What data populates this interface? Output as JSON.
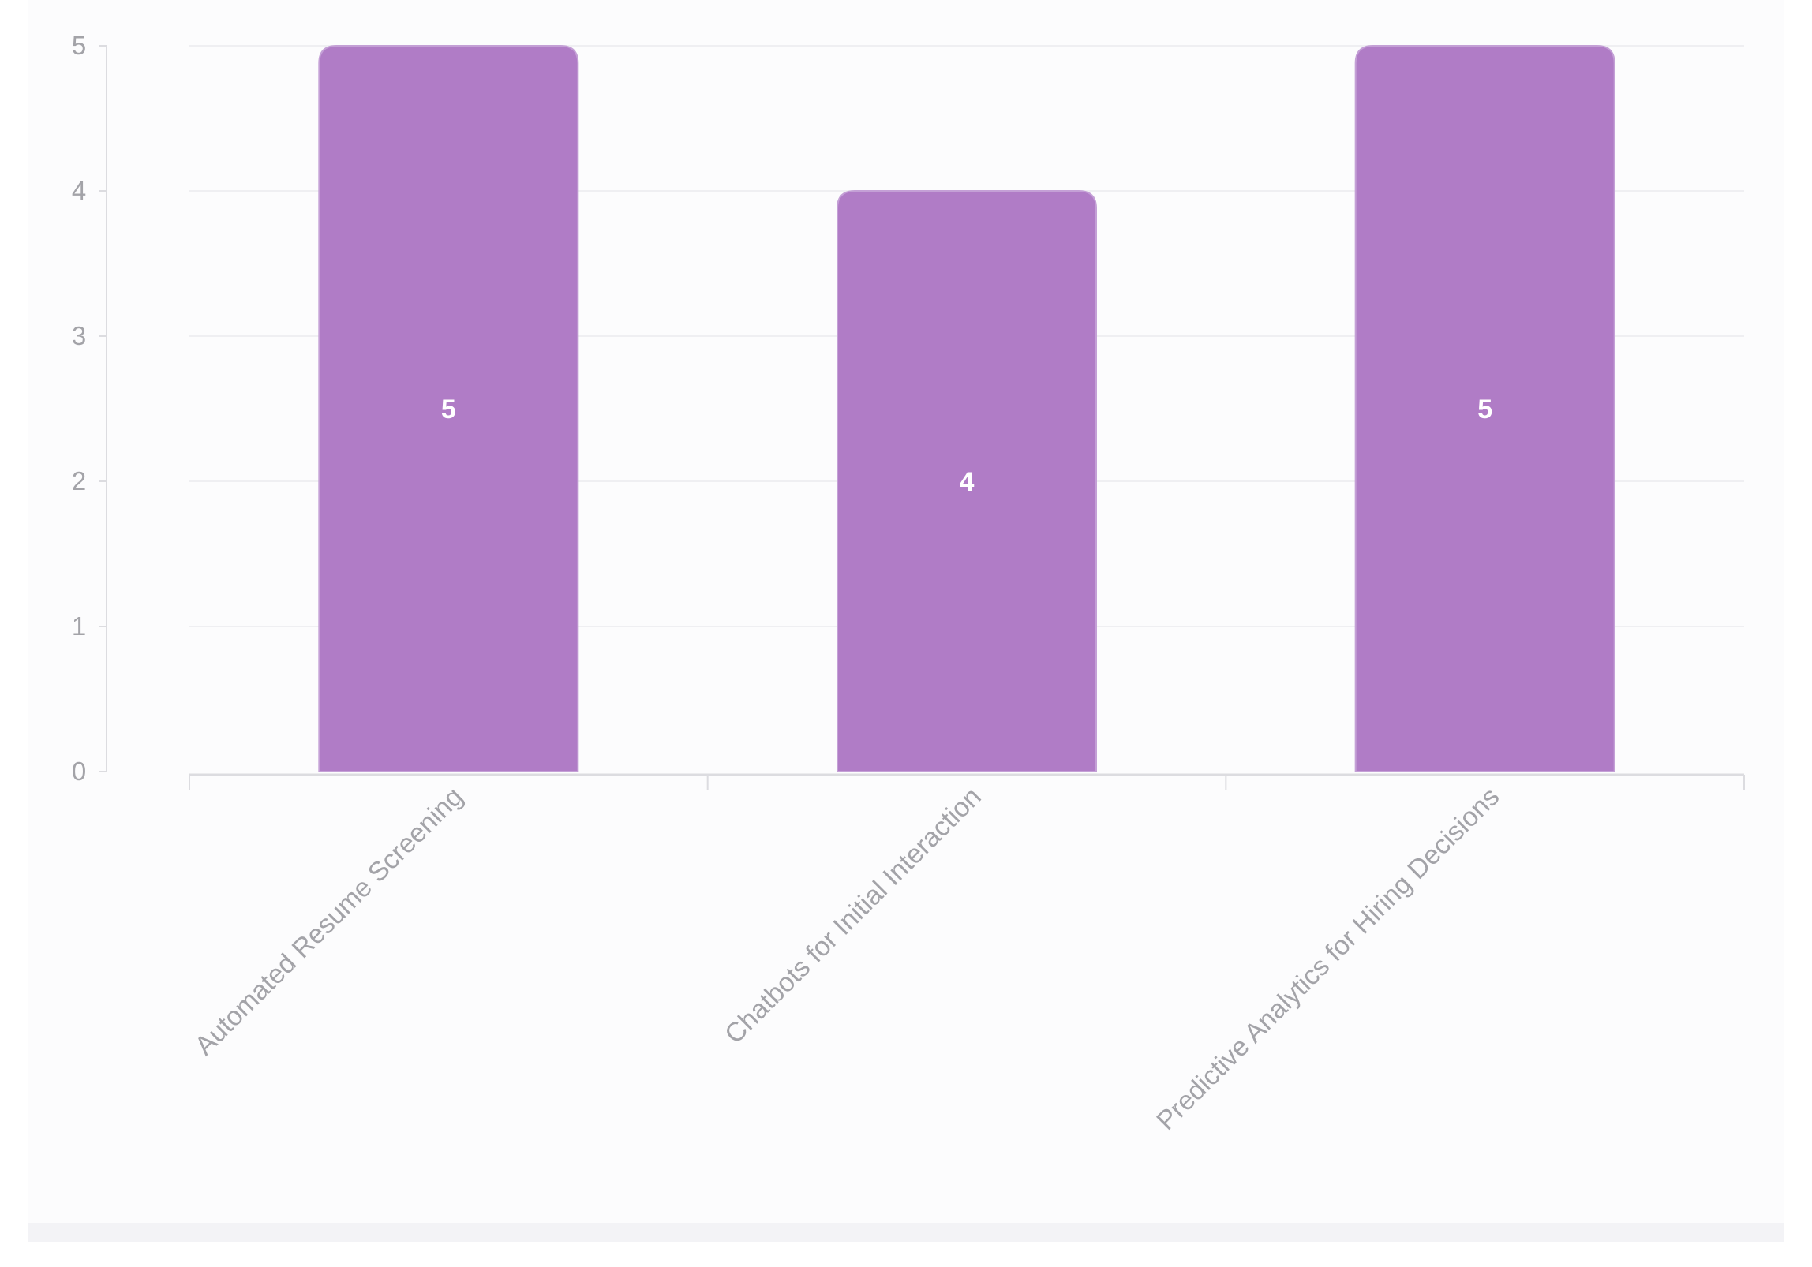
{
  "chart_data": {
    "type": "bar",
    "categories": [
      "Automated Resume Screening",
      "Chatbots for Initial Interaction",
      "Predictive Analytics for Hiring Decisions"
    ],
    "values": [
      5,
      4,
      5
    ],
    "title": "",
    "xlabel": "",
    "ylabel": "",
    "ylim": [
      0,
      5
    ],
    "yticks": [
      0,
      1,
      2,
      3,
      4,
      5
    ],
    "grid": true,
    "legend": "none",
    "data_labels": true,
    "colors": {
      "bar": "#b07cc6",
      "bar_edge": "#c4a0d6",
      "grid": "#efeff2",
      "axis": "#dcdce0",
      "tick_text": "#a3a3a8",
      "value_text": "#ffffff",
      "panel_bg": "#fcfcfd"
    }
  }
}
